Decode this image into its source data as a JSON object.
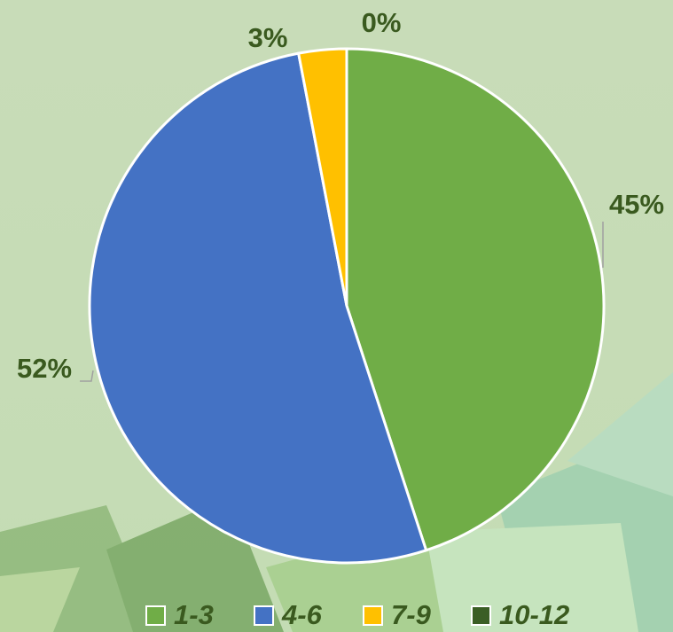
{
  "chart_data": {
    "type": "pie",
    "categories": [
      "1-3",
      "4-6",
      "7-9",
      "10-12"
    ],
    "values": [
      45,
      52,
      3,
      0
    ],
    "value_labels": [
      "45%",
      "52%",
      "3%",
      "0%"
    ],
    "colors": [
      "#70ad47",
      "#4472c4",
      "#ffc000",
      "#3b5e25"
    ],
    "legend": "bottom"
  }
}
